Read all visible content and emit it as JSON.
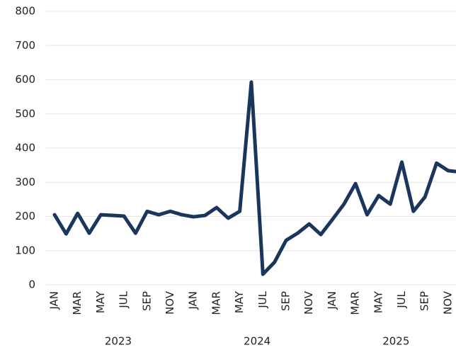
{
  "chart_data": {
    "type": "line",
    "categories": [
      "JAN",
      null,
      "MAR",
      null,
      "MAY",
      null,
      "JUL",
      null,
      "SEP",
      null,
      "NOV",
      null,
      "JAN",
      null,
      "MAR",
      null,
      "MAY",
      null,
      "JUL",
      null,
      "SEP",
      null,
      "NOV",
      null,
      "JAN",
      null,
      "MAR",
      null,
      "MAY",
      null,
      "JUL",
      null,
      "SEP",
      null,
      "NOV",
      null
    ],
    "year_groups": [
      "2023",
      "2024",
      "2025"
    ],
    "series": [
      {
        "color": "#1b365d",
        "values": [
          205,
          149,
          209,
          151,
          205,
          203,
          201,
          151,
          215,
          205,
          215,
          205,
          199,
          203,
          226,
          195,
          215,
          593,
          31,
          66,
          130,
          151,
          178,
          147,
          191,
          236,
          296,
          205,
          261,
          236,
          359,
          215,
          257,
          356,
          334,
          330
        ]
      }
    ],
    "ylim": [
      0,
      800
    ],
    "yticks": [
      0,
      100,
      200,
      300,
      400,
      500,
      600,
      700,
      800
    ],
    "grid": true
  }
}
